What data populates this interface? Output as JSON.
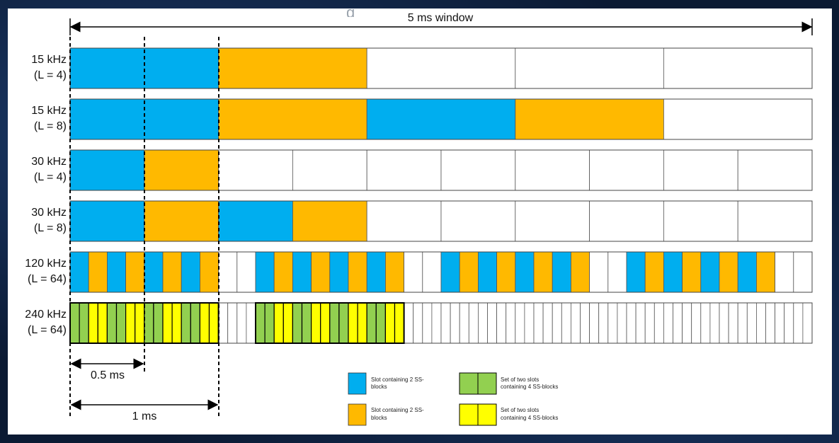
{
  "window_label": "5 ms window",
  "rows": [
    {
      "label_line1": "15 kHz",
      "label_line2": "(L = 4)",
      "slots": 4,
      "pattern": [
        "blue",
        "orange",
        "white",
        "white",
        "white"
      ],
      "cells": 5
    },
    {
      "label_line1": "15 kHz",
      "label_line2": "(L = 8)",
      "pattern": [
        "blue",
        "orange",
        "blue",
        "orange",
        "white"
      ],
      "cells": 5
    },
    {
      "label_line1": "30 kHz",
      "label_line2": "(L = 4)",
      "pattern": [
        "blue",
        "orange",
        "white",
        "white",
        "white",
        "white",
        "white",
        "white",
        "white",
        "white"
      ],
      "cells": 10
    },
    {
      "label_line1": "30 kHz",
      "label_line2": "(L = 8)",
      "pattern": [
        "blue",
        "orange",
        "blue",
        "orange",
        "white",
        "white",
        "white",
        "white",
        "white",
        "white"
      ],
      "cells": 10
    },
    {
      "label_line1": "120 kHz",
      "label_line2": "(L = 64)",
      "pattern": [
        "blue",
        "orange",
        "blue",
        "orange",
        "blue",
        "orange",
        "blue",
        "orange",
        "white",
        "white",
        "blue",
        "orange",
        "blue",
        "orange",
        "blue",
        "orange",
        "blue",
        "orange",
        "white",
        "white",
        "blue",
        "orange",
        "blue",
        "orange",
        "blue",
        "orange",
        "blue",
        "orange",
        "white",
        "white",
        "blue",
        "orange",
        "blue",
        "orange",
        "blue",
        "orange",
        "blue",
        "orange",
        "white",
        "white"
      ],
      "cells": 40
    },
    {
      "label_line1": "240 kHz",
      "label_line2": "(L = 64)",
      "pattern": [
        "green",
        "green",
        "yellow",
        "yellow",
        "green",
        "green",
        "yellow",
        "yellow",
        "green",
        "green",
        "yellow",
        "yellow",
        "green",
        "green",
        "yellow",
        "yellow",
        "white",
        "white",
        "white",
        "white",
        "green",
        "green",
        "yellow",
        "yellow",
        "green",
        "green",
        "yellow",
        "yellow",
        "green",
        "green",
        "yellow",
        "yellow",
        "green",
        "green",
        "yellow",
        "yellow",
        "white",
        "white",
        "white",
        "white",
        "white",
        "white",
        "white",
        "white",
        "white",
        "white",
        "white",
        "white",
        "white",
        "white",
        "white",
        "white",
        "white",
        "white",
        "white",
        "white",
        "white",
        "white",
        "white",
        "white",
        "white",
        "white",
        "white",
        "white",
        "white",
        "white",
        "white",
        "white",
        "white",
        "white",
        "white",
        "white",
        "white",
        "white",
        "white",
        "white",
        "white",
        "white",
        "white",
        "white"
      ],
      "cells": 80
    }
  ],
  "half_ms_label": "0.5 ms",
  "one_ms_label": "1 ms",
  "legend": [
    {
      "color": "blue",
      "line1": "Slot containing 2 SS-",
      "line2": "blocks"
    },
    {
      "color": "orange",
      "line1": "Slot containing 2 SS-",
      "line2": "blocks"
    },
    {
      "color": "green",
      "line1": "Set of two slots",
      "line2": "containing 4 SS-blocks"
    },
    {
      "color": "yellow",
      "line1": "Set of two slots",
      "line2": "containing 4 SS-blocks"
    }
  ],
  "colors": {
    "blue": "#00aeef",
    "orange": "#ffb900",
    "green": "#92d050",
    "yellow": "#ffff00",
    "white": "#ffffff"
  }
}
